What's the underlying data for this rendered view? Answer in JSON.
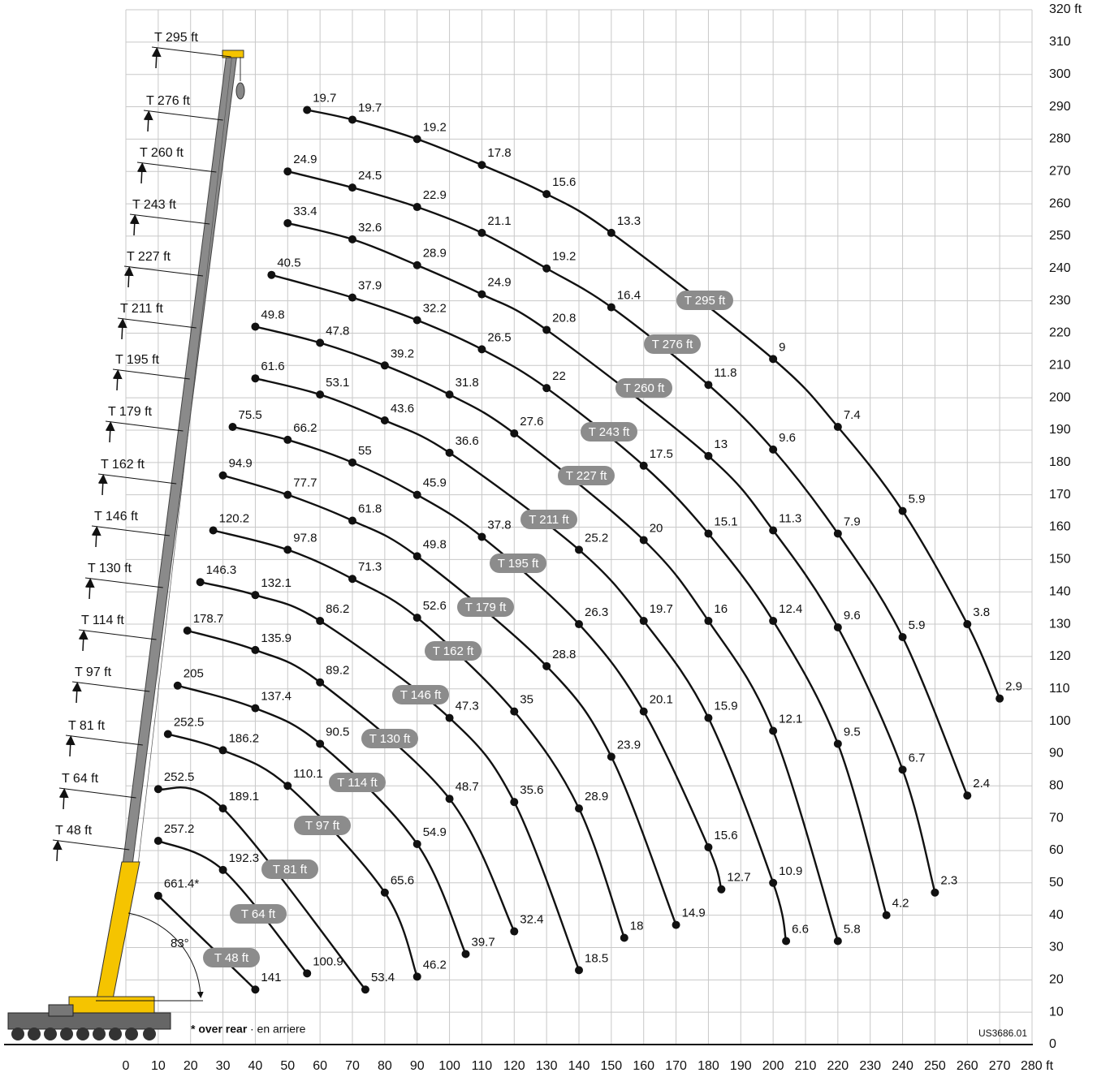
{
  "chart_data": {
    "type": "line",
    "color": "#111111",
    "grid": true,
    "xlim": [
      0,
      280
    ],
    "ylim": [
      0,
      320
    ],
    "xticks": [
      0,
      10,
      20,
      30,
      40,
      50,
      60,
      70,
      80,
      90,
      100,
      110,
      120,
      130,
      140,
      150,
      160,
      170,
      180,
      190,
      200,
      210,
      220,
      230,
      240,
      250,
      260,
      270,
      {
        "value": 280,
        "label": "280 ft"
      }
    ],
    "yticks": [
      0,
      10,
      20,
      30,
      40,
      50,
      60,
      70,
      80,
      90,
      100,
      110,
      120,
      130,
      140,
      150,
      160,
      170,
      180,
      190,
      200,
      210,
      220,
      230,
      240,
      250,
      260,
      270,
      280,
      290,
      300,
      310,
      {
        "value": 320,
        "label": "320 ft"
      }
    ],
    "series": [
      {
        "name": "T 295 ft",
        "x": [
          56,
          70,
          90,
          110,
          130,
          150,
          200,
          220,
          240,
          260,
          270
        ],
        "values": [
          289,
          286,
          280,
          272,
          263,
          251,
          212,
          191,
          165,
          130,
          107
        ],
        "loads": [
          19.7,
          19.7,
          19.2,
          17.8,
          15.6,
          13.3,
          9,
          7.4,
          5.9,
          3.8,
          2.9
        ]
      },
      {
        "name": "T 276 ft",
        "x": [
          50,
          70,
          90,
          110,
          130,
          150,
          180,
          200,
          220,
          240,
          260
        ],
        "values": [
          270,
          265,
          259,
          251,
          240,
          228,
          204,
          184,
          158,
          126,
          77
        ],
        "loads": [
          24.9,
          24.5,
          22.9,
          21.1,
          19.2,
          16.4,
          11.8,
          9.6,
          7.9,
          5.9,
          2.4
        ]
      },
      {
        "name": "T 260 ft",
        "x": [
          50,
          70,
          90,
          110,
          130,
          180,
          200,
          220,
          240,
          250
        ],
        "values": [
          254,
          249,
          241,
          232,
          221,
          182,
          159,
          129,
          85,
          47
        ],
        "loads": [
          33.4,
          32.6,
          28.9,
          24.9,
          20.8,
          13,
          11.3,
          9.6,
          6.7,
          2.3
        ]
      },
      {
        "name": "T 243 ft",
        "x": [
          45,
          70,
          90,
          110,
          130,
          160,
          180,
          200,
          220,
          235
        ],
        "values": [
          238,
          231,
          224,
          215,
          203,
          179,
          158,
          131,
          93,
          40
        ],
        "loads": [
          40.5,
          37.9,
          32.2,
          26.5,
          22,
          17.5,
          15.1,
          12.4,
          9.5,
          4.2
        ]
      },
      {
        "name": "T 227 ft",
        "x": [
          40,
          60,
          80,
          100,
          120,
          160,
          180,
          200,
          220
        ],
        "values": [
          222,
          217,
          210,
          201,
          189,
          156,
          131,
          97,
          32
        ],
        "loads": [
          49.8,
          47.8,
          39.2,
          31.8,
          27.6,
          20,
          16,
          12.1,
          5.8
        ]
      },
      {
        "name": "T 211 ft",
        "x": [
          40,
          60,
          80,
          100,
          140,
          160,
          180,
          200,
          204
        ],
        "values": [
          206,
          201,
          193,
          183,
          153,
          131,
          101,
          50,
          32
        ],
        "loads": [
          61.6,
          53.1,
          43.6,
          36.6,
          25.2,
          19.7,
          15.9,
          10.9,
          6.6
        ]
      },
      {
        "name": "T 195 ft",
        "x": [
          33,
          50,
          70,
          90,
          110,
          140,
          160,
          180,
          184
        ],
        "values": [
          191,
          187,
          180,
          170,
          157,
          130,
          103,
          61,
          48
        ],
        "loads": [
          75.5,
          66.2,
          55,
          45.9,
          37.8,
          26.3,
          20.1,
          15.6,
          12.7
        ]
      },
      {
        "name": "T 179 ft",
        "x": [
          30,
          50,
          70,
          90,
          130,
          150,
          170
        ],
        "values": [
          176,
          170,
          162,
          151,
          117,
          89,
          37
        ],
        "loads": [
          94.9,
          77.7,
          61.8,
          49.8,
          28.8,
          23.9,
          14.9
        ]
      },
      {
        "name": "T 162 ft",
        "x": [
          27,
          50,
          70,
          90,
          120,
          140,
          154
        ],
        "values": [
          159,
          153,
          144,
          132,
          103,
          73,
          33
        ],
        "loads": [
          120.2,
          97.8,
          71.3,
          52.6,
          35,
          28.9,
          18
        ]
      },
      {
        "name": "T 146 ft",
        "x": [
          23,
          40,
          60,
          100,
          120,
          140
        ],
        "values": [
          143,
          139,
          131,
          101,
          75,
          23
        ],
        "loads": [
          146.3,
          132.1,
          86.2,
          47.3,
          35.6,
          18.5
        ]
      },
      {
        "name": "T 130 ft",
        "x": [
          19,
          40,
          60,
          100,
          120
        ],
        "values": [
          128,
          122,
          112,
          76,
          35
        ],
        "loads": [
          178.7,
          135.9,
          89.2,
          48.7,
          32.4
        ]
      },
      {
        "name": "T 114 ft",
        "x": [
          16,
          40,
          60,
          90,
          105
        ],
        "values": [
          111,
          104,
          93,
          62,
          28
        ],
        "loads": [
          205,
          137.4,
          90.5,
          54.9,
          39.7
        ]
      },
      {
        "name": "T 97 ft",
        "x": [
          13,
          30,
          50,
          80,
          90
        ],
        "values": [
          96,
          91,
          80,
          47,
          21
        ],
        "loads": [
          252.5,
          186.2,
          110.1,
          65.6,
          46.2
        ]
      },
      {
        "name": "T 81 ft",
        "x": [
          10,
          30,
          74
        ],
        "values": [
          79,
          73,
          17
        ],
        "loads": [
          252.5,
          189.1,
          53.4
        ]
      },
      {
        "name": "T 64 ft",
        "x": [
          10,
          30,
          56
        ],
        "values": [
          63,
          54,
          22
        ],
        "loads": [
          257.2,
          192.3,
          100.9
        ]
      },
      {
        "name": "T 48 ft",
        "x": [
          10,
          40
        ],
        "values": [
          46,
          17
        ],
        "loads": [
          661.4,
          141
        ],
        "load_labels": [
          "661.4*",
          "141"
        ]
      }
    ],
    "angle_label": "83°",
    "note_bold": "* over rear",
    "note": "· en arriere",
    "code": "US3686.01"
  }
}
